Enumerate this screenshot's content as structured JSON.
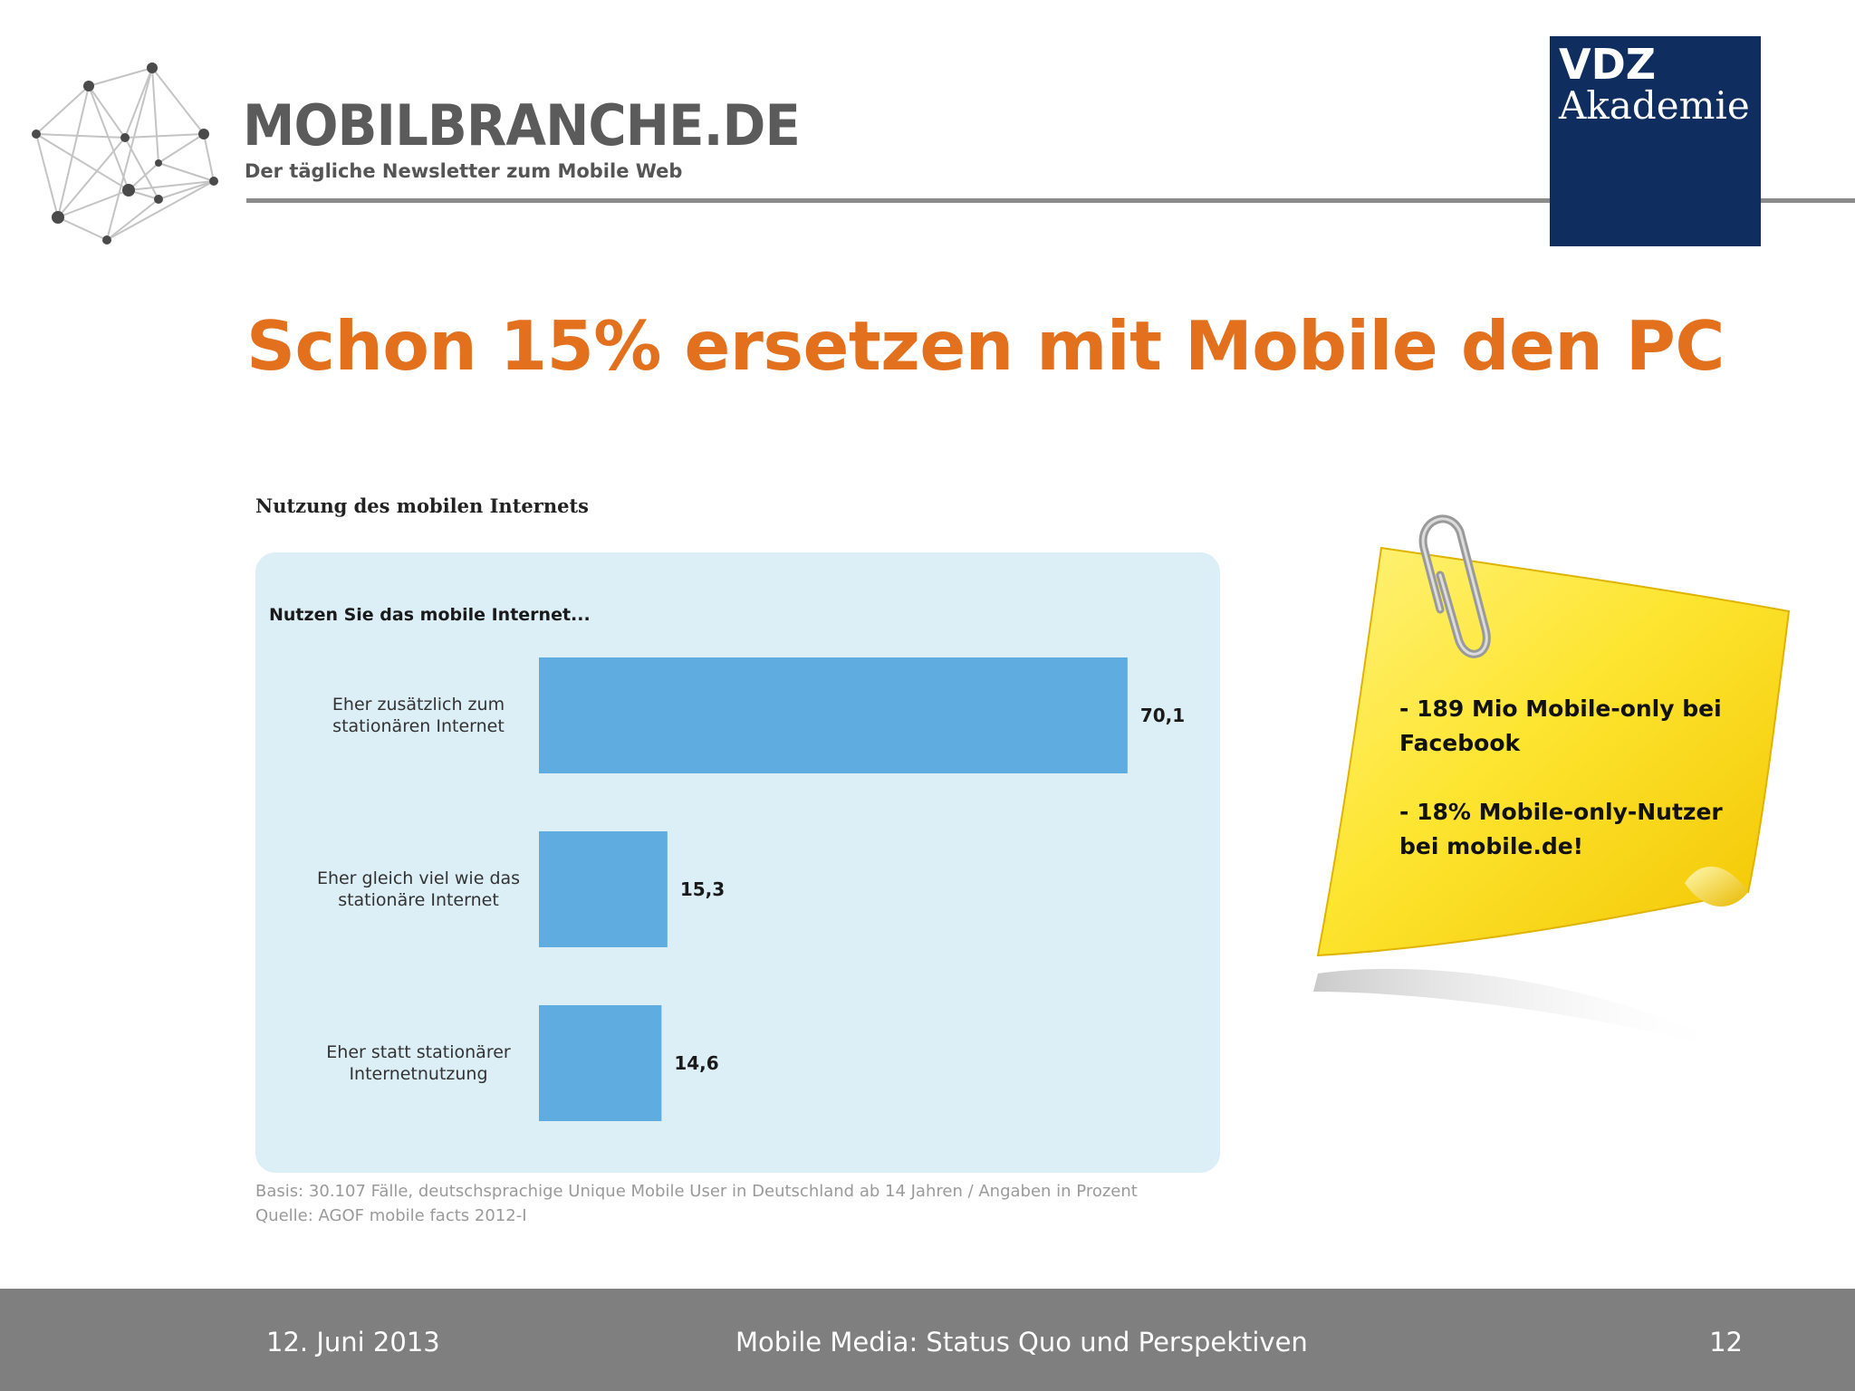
{
  "header": {
    "brand_name": "MOBILBRANCHE.DE",
    "brand_tagline": "Der tägliche Newsletter zum Mobile Web",
    "partner_logo": {
      "line1": "VDZ",
      "line2": "Akademie",
      "color": "#0f2d5f"
    }
  },
  "slide": {
    "title": "Schon 15% ersetzen mit Mobile den PC",
    "title_color": "#e2701d"
  },
  "chart_data": {
    "type": "bar",
    "orientation": "horizontal",
    "title": "Nutzung  des mobilen Internets",
    "subtitle": "Nutzen Sie das mobile Internet...",
    "categories": [
      [
        "Eher zusätzlich zum",
        "stationären Internet"
      ],
      [
        "Eher gleich viel wie das",
        "stationäre Internet"
      ],
      [
        "Eher statt stationärer",
        "Internetnutzung"
      ]
    ],
    "values": [
      70.1,
      15.3,
      14.6
    ],
    "value_labels": [
      "70,1",
      "15,3",
      "14,6"
    ],
    "bar_color": "#5eace0",
    "panel_color": "#dceef6",
    "xlim": [
      0,
      80
    ],
    "grid": false,
    "note_lines": [
      "Basis: 30.107 Fälle, deutschsprachige Unique Mobile User in Deutschland ab 14 Jahren / Angaben in Prozent",
      "Quelle: AGOF mobile facts 2012-I"
    ]
  },
  "sticky_note": {
    "lines": [
      "- 189 Mio Mobile-only bei",
      "Facebook",
      "",
      "- 18% Mobile-only-Nutzer",
      "bei mobile.de!"
    ]
  },
  "footer": {
    "date": "12. Juni 2013",
    "title": "Mobile Media: Status Quo und Perspektiven",
    "page": "12"
  }
}
